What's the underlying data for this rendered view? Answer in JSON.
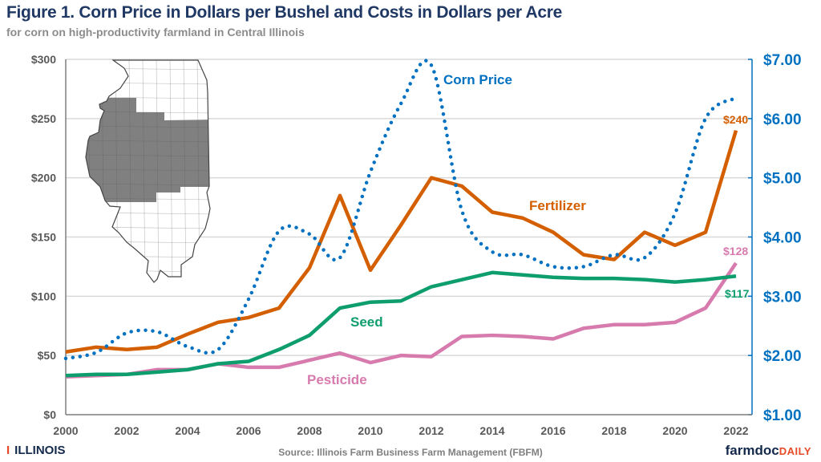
{
  "chart_data": {
    "type": "line",
    "title": "Figure 1. Corn Price in Dollars per Bushel and Costs in Dollars per Acre",
    "subtitle": "for corn on high-productivity farmland in Central Illinois",
    "source": "Source: Illinois Farm Business Farm Management (FBFM)",
    "x": [
      2000,
      2001,
      2002,
      2003,
      2004,
      2005,
      2006,
      2007,
      2008,
      2009,
      2010,
      2011,
      2012,
      2013,
      2014,
      2015,
      2016,
      2017,
      2018,
      2019,
      2020,
      2021,
      2022
    ],
    "x_ticks": [
      "2000",
      "2002",
      "2004",
      "2006",
      "2008",
      "2010",
      "2012",
      "2014",
      "2016",
      "2018",
      "2020",
      "2022"
    ],
    "y_left": {
      "range": [
        0,
        300
      ],
      "ticks": [
        "$0",
        "$50",
        "$100",
        "$150",
        "$200",
        "$250",
        "$300"
      ]
    },
    "y_right": {
      "range": [
        1,
        7
      ],
      "ticks": [
        "$1.00",
        "$2.00",
        "$3.00",
        "$4.00",
        "$5.00",
        "$6.00",
        "$7.00"
      ]
    },
    "grid": true,
    "series": [
      {
        "name": "Fertilizer",
        "axis": "left",
        "color": "#D45F00",
        "style": "solid",
        "end_label": "$240",
        "values": [
          53,
          57,
          55,
          57,
          68,
          78,
          82,
          90,
          124,
          185,
          122,
          160,
          200,
          193,
          171,
          166,
          154,
          135,
          131,
          154,
          143,
          154,
          240
        ]
      },
      {
        "name": "Seed",
        "axis": "left",
        "color": "#0E9E6E",
        "style": "solid",
        "end_label": "$117",
        "values": [
          33,
          34,
          34,
          36,
          38,
          43,
          45,
          55,
          67,
          90,
          95,
          96,
          108,
          114,
          120,
          118,
          116,
          115,
          115,
          114,
          112,
          114,
          117
        ]
      },
      {
        "name": "Pesticide",
        "axis": "left",
        "color": "#D77BAE",
        "style": "solid",
        "end_label": "$128",
        "values": [
          32,
          33,
          34,
          38,
          38,
          43,
          40,
          40,
          46,
          52,
          44,
          50,
          49,
          66,
          67,
          66,
          64,
          73,
          76,
          76,
          78,
          90,
          128
        ]
      },
      {
        "name": "Corn Price",
        "axis": "right",
        "color": "#0070C0",
        "style": "dotted",
        "values": [
          1.95,
          2.05,
          2.38,
          2.4,
          2.15,
          2.1,
          2.95,
          4.1,
          4.05,
          3.65,
          5.1,
          6.25,
          6.9,
          4.45,
          3.75,
          3.7,
          3.5,
          3.5,
          3.7,
          3.65,
          4.4,
          6.0,
          6.35
        ]
      }
    ],
    "inset_map": "Illinois counties with central region shaded",
    "colors": {
      "title": "#1F3864",
      "map_shaded": "#808080",
      "grid": "#d9d9d9"
    }
  },
  "logos": {
    "left": "ILLINOIS",
    "right_main": "farmdoc",
    "right_accent": "DAILY"
  }
}
